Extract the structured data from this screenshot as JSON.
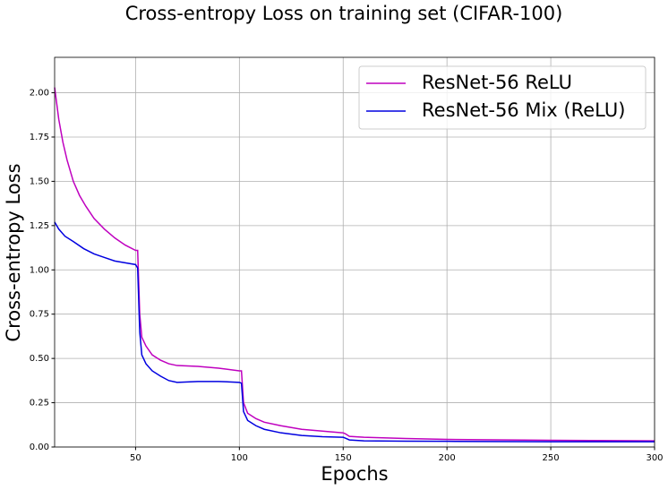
{
  "chart_data": {
    "type": "line",
    "title": "Cross-entropy Loss on training set (CIFAR-100)",
    "xlabel": "Epochs",
    "ylabel": "Cross-entropy Loss",
    "xlim": [
      11,
      300
    ],
    "ylim": [
      0,
      2.2
    ],
    "xticks": [
      50,
      100,
      150,
      200,
      250,
      300
    ],
    "yticks": [
      {
        "value": 0,
        "label": "0.00"
      },
      {
        "value": 0.25,
        "label": "0.25"
      },
      {
        "value": 0.5,
        "label": "0.50"
      },
      {
        "value": 0.75,
        "label": "0.75"
      },
      {
        "value": 1,
        "label": "1.00"
      },
      {
        "value": 1.25,
        "label": "1.25"
      },
      {
        "value": 1.5,
        "label": "1.50"
      },
      {
        "value": 1.75,
        "label": "1.75"
      },
      {
        "value": 2,
        "label": "2.00"
      }
    ],
    "grid": true,
    "legend": "upper right",
    "series": [
      {
        "name": "ResNet-56 ReLU",
        "color": "#bf00bf",
        "x": [
          11,
          13,
          15,
          17,
          20,
          23,
          26,
          30,
          35,
          40,
          45,
          50,
          51,
          52,
          53,
          55,
          58,
          62,
          66,
          70,
          80,
          90,
          100,
          101,
          102,
          104,
          108,
          112,
          120,
          130,
          140,
          150,
          151,
          153,
          160,
          180,
          200,
          250,
          300
        ],
        "values": [
          2.03,
          1.85,
          1.72,
          1.62,
          1.5,
          1.42,
          1.36,
          1.29,
          1.23,
          1.18,
          1.14,
          1.11,
          1.11,
          0.75,
          0.62,
          0.57,
          0.52,
          0.49,
          0.47,
          0.46,
          0.455,
          0.445,
          0.43,
          0.43,
          0.25,
          0.19,
          0.16,
          0.14,
          0.12,
          0.1,
          0.09,
          0.08,
          0.075,
          0.06,
          0.055,
          0.048,
          0.043,
          0.038,
          0.035
        ]
      },
      {
        "name": "ResNet-56 Mix (ReLU)",
        "color": "#0000e0",
        "x": [
          11,
          13,
          16,
          20,
          25,
          30,
          35,
          40,
          45,
          50,
          51,
          52,
          53,
          55,
          58,
          62,
          66,
          70,
          80,
          90,
          100,
          101,
          102,
          104,
          108,
          112,
          120,
          130,
          140,
          150,
          151,
          153,
          160,
          180,
          200,
          250,
          300
        ],
        "values": [
          1.27,
          1.23,
          1.19,
          1.16,
          1.12,
          1.09,
          1.07,
          1.05,
          1.04,
          1.03,
          1.01,
          0.65,
          0.52,
          0.47,
          0.43,
          0.4,
          0.375,
          0.365,
          0.37,
          0.37,
          0.365,
          0.36,
          0.2,
          0.15,
          0.12,
          0.1,
          0.08,
          0.065,
          0.058,
          0.055,
          0.05,
          0.04,
          0.035,
          0.033,
          0.032,
          0.03,
          0.03
        ]
      }
    ]
  }
}
